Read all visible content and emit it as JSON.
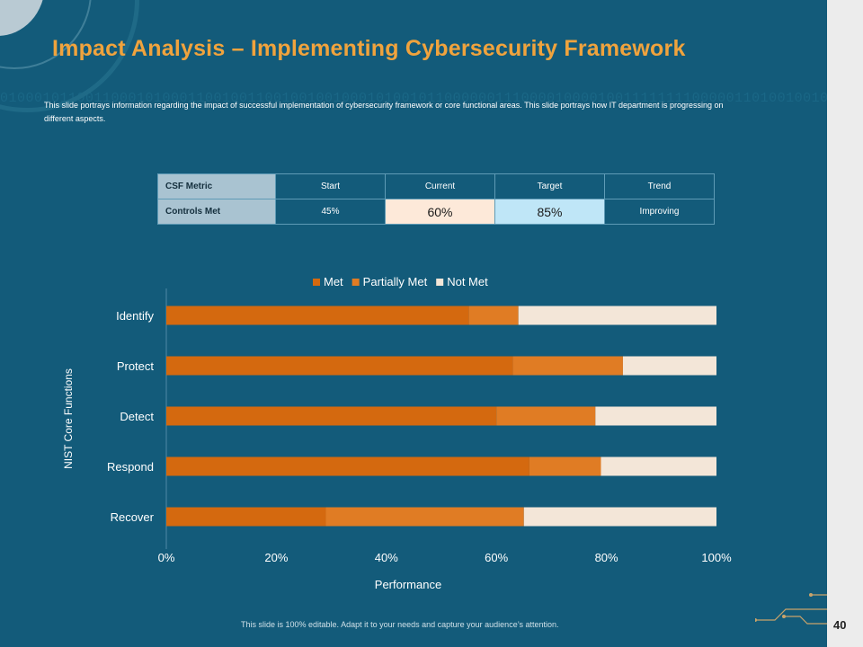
{
  "title": "Impact Analysis – Implementing Cybersecurity Framework",
  "description": "This slide portrays information regarding the impact of successful implementation of cybersecurity framework or core functional areas. This slide portrays how IT department is progressing on different aspects.",
  "table": {
    "headers": [
      "CSF Metric",
      "Start",
      "Current",
      "Target",
      "Trend"
    ],
    "row": {
      "metric": "Controls Met",
      "start": "45%",
      "current": "60%",
      "target": "85%",
      "trend": "Improving"
    }
  },
  "chart_data": {
    "type": "bar",
    "orientation": "horizontal",
    "stacked": true,
    "categories": [
      "Identify",
      "Protect",
      "Detect",
      "Respond",
      "Recover"
    ],
    "series": [
      {
        "name": "Met",
        "values": [
          55,
          63,
          60,
          66,
          29
        ],
        "color": "#d4690f"
      },
      {
        "name": "Partially Met",
        "values": [
          9,
          20,
          18,
          13,
          36
        ],
        "color": "#e07c24"
      },
      {
        "name": "Not Met",
        "values": [
          36,
          17,
          22,
          21,
          35
        ],
        "color": "#f3e6d8"
      }
    ],
    "xlim": [
      0,
      100
    ],
    "xticks": [
      "0%",
      "20%",
      "40%",
      "60%",
      "80%",
      "100%"
    ],
    "xlabel": "Performance",
    "ylabel": "NIST Core Functions",
    "legend": "top"
  },
  "footer": "This slide is 100% editable. Adapt it to your needs and capture your audience’s attention.",
  "page_number": "40"
}
